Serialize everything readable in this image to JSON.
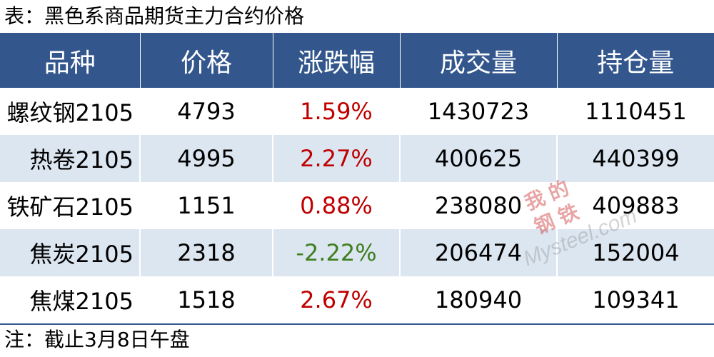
{
  "title": "表：黑色系商品期货主力合约价格",
  "table": {
    "headers": [
      "品种",
      "价格",
      "涨跌幅",
      "成交量",
      "持仓量"
    ],
    "rows": [
      {
        "name": "螺纹钢2105",
        "price": "4793",
        "change": "1.59%",
        "direction": "up",
        "volume": "1430723",
        "open_interest": "1110451"
      },
      {
        "name": "热卷2105",
        "price": "4995",
        "change": "2.27%",
        "direction": "up",
        "volume": "400625",
        "open_interest": "440399"
      },
      {
        "name": "铁矿石2105",
        "price": "1151",
        "change": "0.88%",
        "direction": "up",
        "volume": "238080",
        "open_interest": "409883"
      },
      {
        "name": "焦炭2105",
        "price": "2318",
        "change": "-2.22%",
        "direction": "down",
        "volume": "206474",
        "open_interest": "152004"
      },
      {
        "name": "焦煤2105",
        "price": "1518",
        "change": "2.67%",
        "direction": "up",
        "volume": "180940",
        "open_interest": "109341"
      }
    ]
  },
  "note": "注：截止3月8日午盘",
  "watermark": {
    "logo_chars": [
      "我",
      "的",
      "钢",
      "铁"
    ],
    "text": "Mysteel.com"
  },
  "colors": {
    "header_bg": "#33578d",
    "stripe_bg": "#dce6f1",
    "up": "#c00000",
    "down": "#3f7f1f"
  }
}
